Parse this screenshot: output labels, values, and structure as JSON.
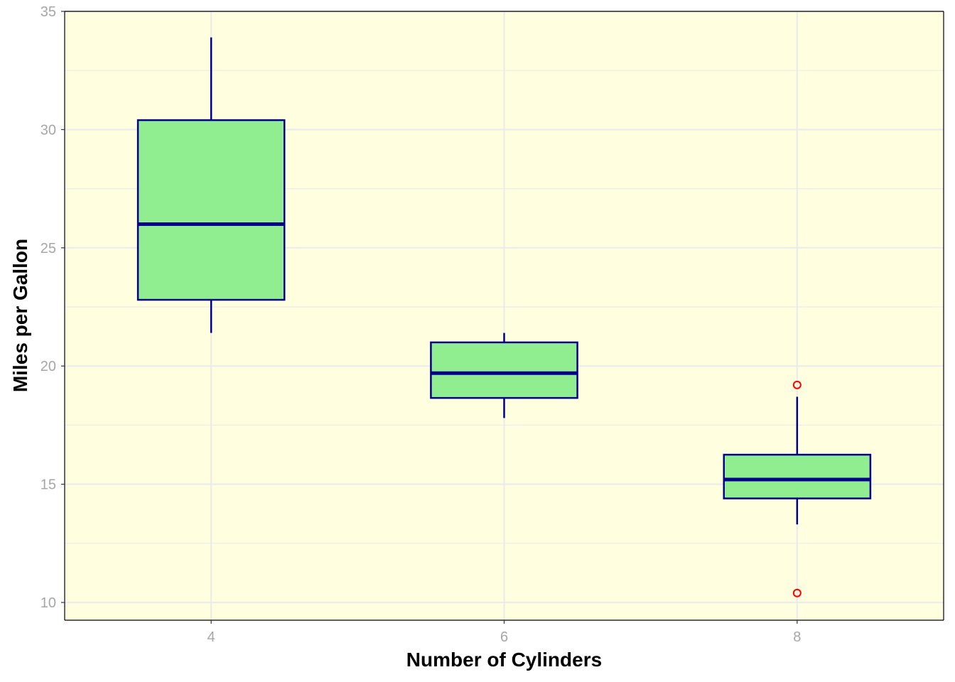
{
  "chart_data": {
    "type": "box",
    "title": "",
    "xlabel": "Number of Cylinders",
    "ylabel": "Miles per Gallon",
    "xlim": [
      3,
      9
    ],
    "ylim": [
      9.25,
      35
    ],
    "x_ticks": [
      4,
      6,
      8
    ],
    "y_ticks": [
      10,
      15,
      20,
      25,
      30,
      35
    ],
    "y_minor_ticks": [
      12.5,
      17.5,
      22.5,
      27.5,
      32.5
    ],
    "grid": true,
    "box_width": 1,
    "series": [
      {
        "x": 4,
        "whisker_low": 21.4,
        "q1": 22.8,
        "median": 26.0,
        "q3": 30.4,
        "whisker_high": 33.9,
        "outliers": []
      },
      {
        "x": 6,
        "whisker_low": 17.8,
        "q1": 18.65,
        "median": 19.7,
        "q3": 21.0,
        "whisker_high": 21.4,
        "outliers": []
      },
      {
        "x": 8,
        "whisker_low": 13.3,
        "q1": 14.4,
        "median": 15.2,
        "q3": 16.25,
        "whisker_high": 18.7,
        "outliers": [
          19.2,
          10.4
        ]
      }
    ],
    "colors": {
      "panel_background": "#ffffe0",
      "box_fill": "#90ee90",
      "box_outline": "#00008b",
      "outlier": "#ff0000",
      "grid": "#ebebeb",
      "tick_text": "#a6a6a6",
      "axis_title": "#000000"
    }
  }
}
